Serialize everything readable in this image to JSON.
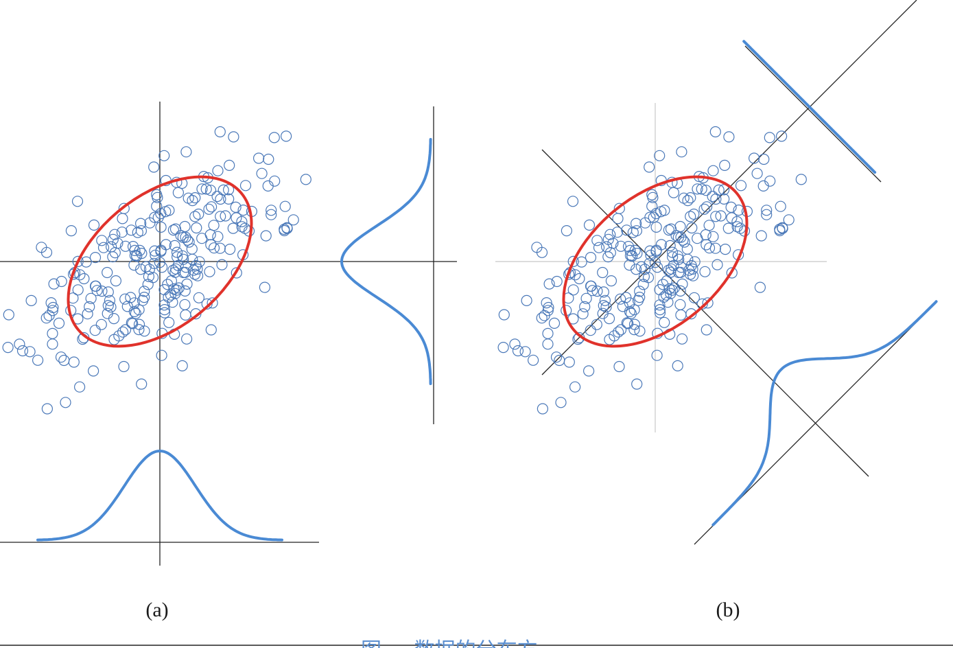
{
  "colors": {
    "points": "#4a78b8",
    "ellipse": "#e0322b",
    "distribution": "#4a8ad4",
    "axes": "#222222",
    "light_axes": "#c8c8c8",
    "caption": "#5b8fd0"
  },
  "panels": [
    {
      "id": "a",
      "label": "(a)"
    },
    {
      "id": "b",
      "label": "(b)"
    }
  ],
  "caption": {
    "text": "图 ··· 数据的分布方"
  }
}
